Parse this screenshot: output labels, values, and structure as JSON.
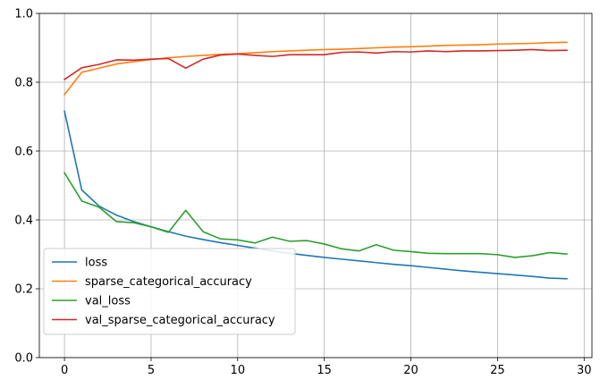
{
  "chart_data": {
    "type": "line",
    "x": [
      0,
      1,
      2,
      3,
      4,
      5,
      6,
      7,
      8,
      9,
      10,
      11,
      12,
      13,
      14,
      15,
      16,
      17,
      18,
      19,
      20,
      21,
      22,
      23,
      24,
      25,
      26,
      27,
      28,
      29
    ],
    "series": [
      {
        "name": "loss",
        "color": "#1f77b4",
        "values": [
          0.716,
          0.487,
          0.44,
          0.414,
          0.395,
          0.38,
          0.366,
          0.353,
          0.343,
          0.334,
          0.326,
          0.318,
          0.31,
          0.303,
          0.297,
          0.291,
          0.286,
          0.281,
          0.276,
          0.271,
          0.267,
          0.262,
          0.257,
          0.252,
          0.248,
          0.244,
          0.24,
          0.236,
          0.231,
          0.229
        ]
      },
      {
        "name": "sparse_categorical_accuracy",
        "color": "#ff7f0e",
        "values": [
          0.764,
          0.829,
          0.841,
          0.853,
          0.86,
          0.866,
          0.871,
          0.875,
          0.878,
          0.881,
          0.883,
          0.886,
          0.889,
          0.891,
          0.893,
          0.895,
          0.896,
          0.898,
          0.9,
          0.902,
          0.903,
          0.905,
          0.907,
          0.908,
          0.909,
          0.911,
          0.912,
          0.913,
          0.915,
          0.916
        ]
      },
      {
        "name": "val_loss",
        "color": "#2ca02c",
        "values": [
          0.537,
          0.455,
          0.437,
          0.395,
          0.392,
          0.38,
          0.364,
          0.428,
          0.366,
          0.345,
          0.342,
          0.333,
          0.35,
          0.338,
          0.34,
          0.33,
          0.316,
          0.31,
          0.328,
          0.312,
          0.308,
          0.303,
          0.302,
          0.302,
          0.302,
          0.299,
          0.291,
          0.296,
          0.305,
          0.301
        ]
      },
      {
        "name": "val_sparse_categorical_accuracy",
        "color": "#d62728",
        "values": [
          0.808,
          0.842,
          0.852,
          0.865,
          0.864,
          0.867,
          0.869,
          0.841,
          0.867,
          0.879,
          0.882,
          0.878,
          0.875,
          0.88,
          0.88,
          0.88,
          0.887,
          0.888,
          0.885,
          0.889,
          0.888,
          0.891,
          0.889,
          0.891,
          0.891,
          0.892,
          0.893,
          0.895,
          0.892,
          0.893
        ]
      }
    ],
    "title": "",
    "xlabel": "",
    "ylabel": "",
    "xlim": [
      -1.45,
      30.45
    ],
    "ylim": [
      0,
      1
    ],
    "xticks": [
      0,
      5,
      10,
      15,
      20,
      25,
      30
    ],
    "yticks": [
      0.0,
      0.2,
      0.4,
      0.6,
      0.8,
      1.0
    ],
    "xtick_labels": [
      "0",
      "5",
      "10",
      "15",
      "20",
      "25",
      "30"
    ],
    "ytick_labels": [
      "0.0",
      "0.2",
      "0.4",
      "0.6",
      "0.8",
      "1.0"
    ],
    "grid": true,
    "legend_position": "lower-left"
  }
}
